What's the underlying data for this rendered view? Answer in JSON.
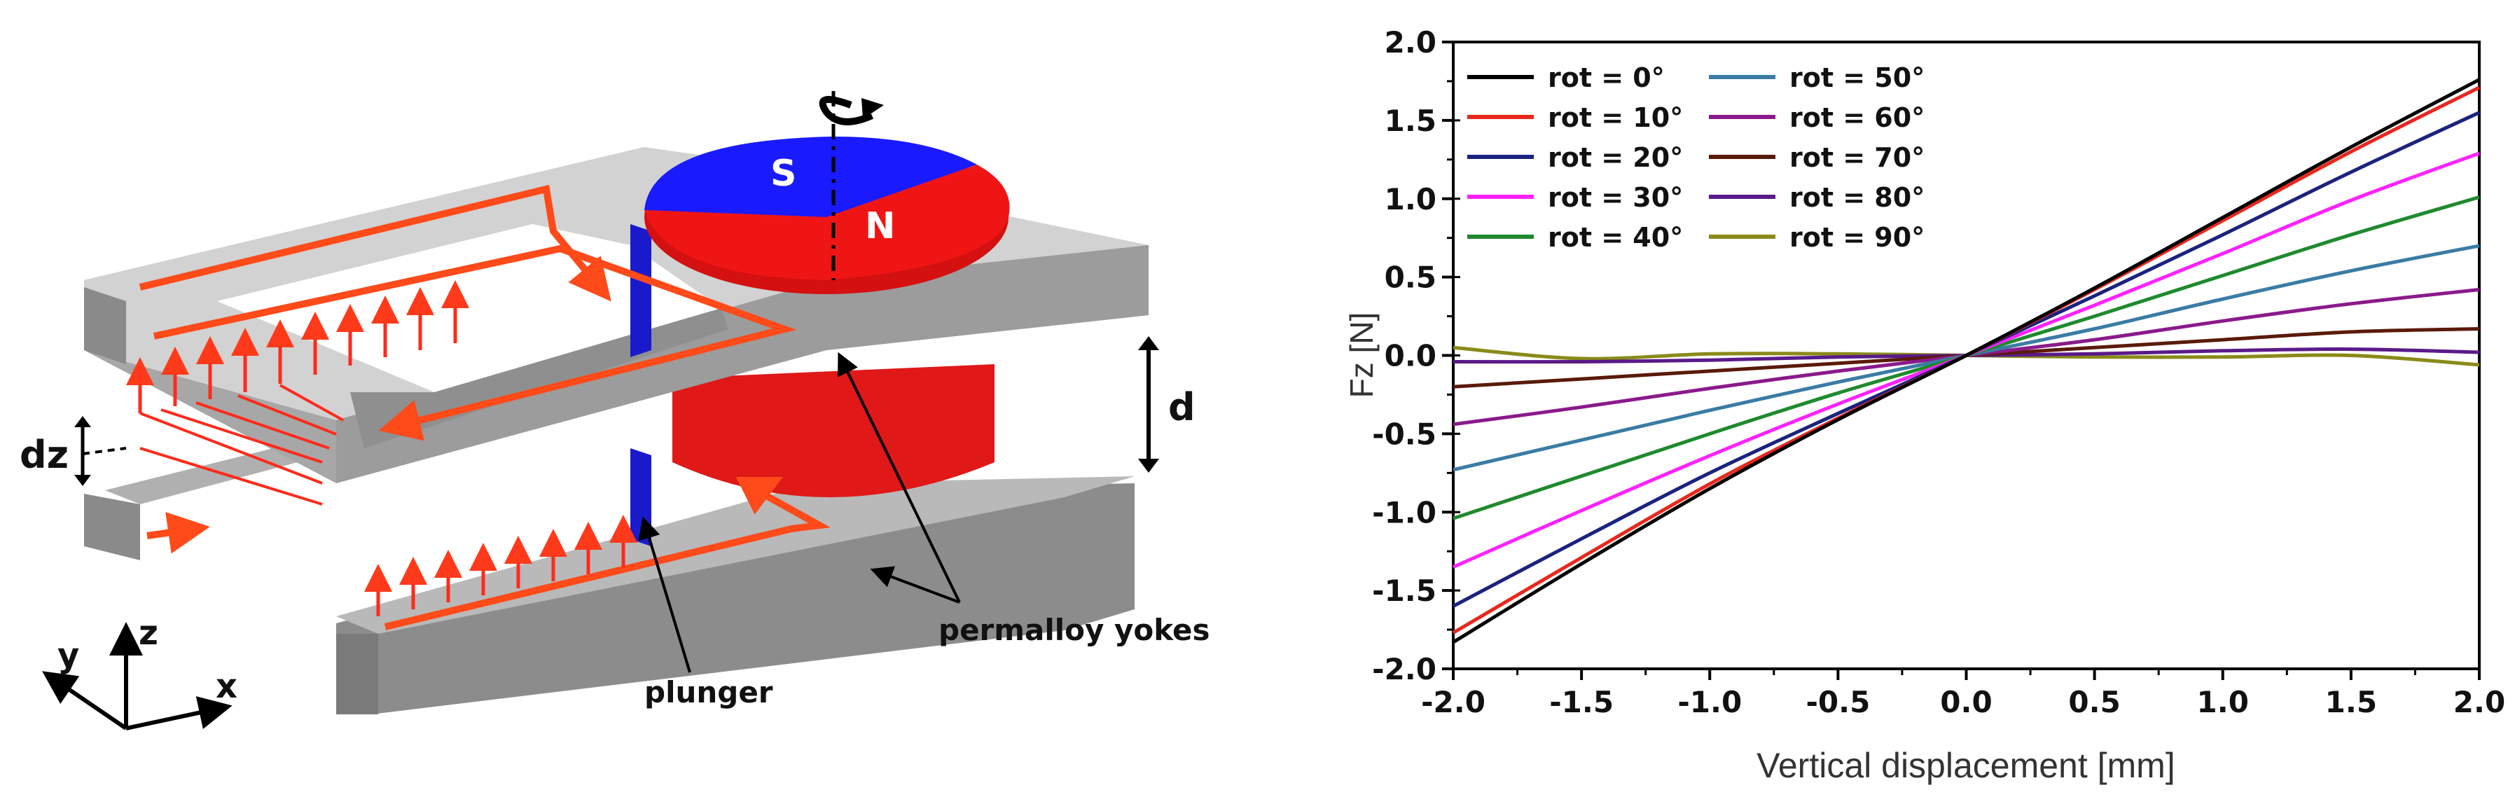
{
  "illustration": {
    "pole_south": "S",
    "pole_north": "N",
    "label_d": "d",
    "label_dz": "dz",
    "label_plunger": "plunger",
    "label_yokes": "permalloy yokes",
    "axis_x": "x",
    "axis_y": "y",
    "axis_z": "z",
    "colors": {
      "magnet_south": "#1a1aff",
      "magnet_north": "#f01515",
      "yoke": "#9a9a9a",
      "flux": "#ff4a1a"
    }
  },
  "chart_data": {
    "type": "line",
    "title": "",
    "xlabel": "Vertical displacement [mm]",
    "ylabel": "Fz [N]",
    "xlim": [
      -2.0,
      2.0
    ],
    "ylim": [
      -2.0,
      2.0
    ],
    "xticks": [
      "-2.0",
      "-1.5",
      "-1.0",
      "-0.5",
      "0.0",
      "0.5",
      "1.0",
      "1.5",
      "2.0"
    ],
    "yticks": [
      "2.0",
      "1.5",
      "1.0",
      "0.5",
      "0.0",
      "-0.5",
      "-1.0",
      "-1.5",
      "-2.0"
    ],
    "legend_position": "top-left",
    "x": [
      -2.0,
      -1.5,
      -1.0,
      -0.5,
      0.0,
      0.5,
      1.0,
      1.5,
      2.0
    ],
    "series": [
      {
        "name": "rot = 0°",
        "color": "#000000",
        "values": [
          -1.83,
          -1.33,
          -0.85,
          -0.41,
          0.0,
          0.43,
          0.88,
          1.33,
          1.76
        ]
      },
      {
        "name": "rot = 10°",
        "color": "#e8281e",
        "values": [
          -1.77,
          -1.29,
          -0.82,
          -0.4,
          0.0,
          0.42,
          0.86,
          1.3,
          1.71
        ]
      },
      {
        "name": "rot = 20°",
        "color": "#1a237e",
        "values": [
          -1.6,
          -1.17,
          -0.75,
          -0.37,
          0.0,
          0.38,
          0.77,
          1.17,
          1.55
        ]
      },
      {
        "name": "rot = 30°",
        "color": "#ff22ff",
        "values": [
          -1.35,
          -0.99,
          -0.64,
          -0.31,
          0.0,
          0.32,
          0.65,
          0.99,
          1.29
        ]
      },
      {
        "name": "rot = 40°",
        "color": "#1f8a2e",
        "values": [
          -1.04,
          -0.77,
          -0.5,
          -0.24,
          0.0,
          0.25,
          0.51,
          0.77,
          1.01
        ]
      },
      {
        "name": "rot = 50°",
        "color": "#3a7ca5",
        "values": [
          -0.73,
          -0.54,
          -0.35,
          -0.17,
          0.0,
          0.17,
          0.36,
          0.54,
          0.7
        ]
      },
      {
        "name": "rot = 60°",
        "color": "#8b1a8b",
        "values": [
          -0.44,
          -0.33,
          -0.21,
          -0.1,
          0.0,
          0.1,
          0.22,
          0.33,
          0.42
        ]
      },
      {
        "name": "rot = 70°",
        "color": "#5a1a0a",
        "values": [
          -0.2,
          -0.15,
          -0.1,
          -0.05,
          0.0,
          0.05,
          0.1,
          0.15,
          0.17
        ]
      },
      {
        "name": "rot = 80°",
        "color": "#5a1a8a",
        "values": [
          -0.04,
          -0.04,
          -0.03,
          -0.01,
          0.0,
          0.01,
          0.03,
          0.04,
          0.02
        ]
      },
      {
        "name": "rot = 90°",
        "color": "#8a8a1a",
        "values": [
          0.05,
          -0.02,
          0.01,
          0.01,
          0.0,
          -0.01,
          -0.01,
          0.0,
          -0.06
        ]
      }
    ]
  }
}
